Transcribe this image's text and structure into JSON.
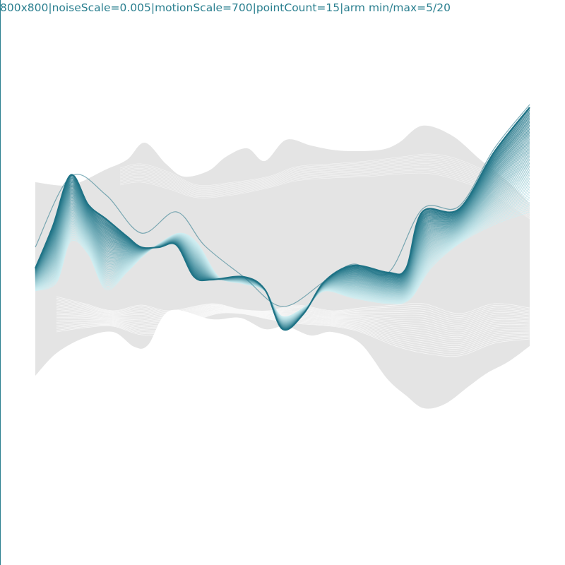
{
  "caption": "800x800|noiseScale=0.005|motionScale=700|pointCount=15|arm min/max=5/20",
  "colors": {
    "background": "#ffffff",
    "shadow": "#e4e4e4",
    "ribbon_dark": "#1f7386",
    "ribbon_light": "#cfeef2",
    "caption": "#2a7f8f"
  }
}
